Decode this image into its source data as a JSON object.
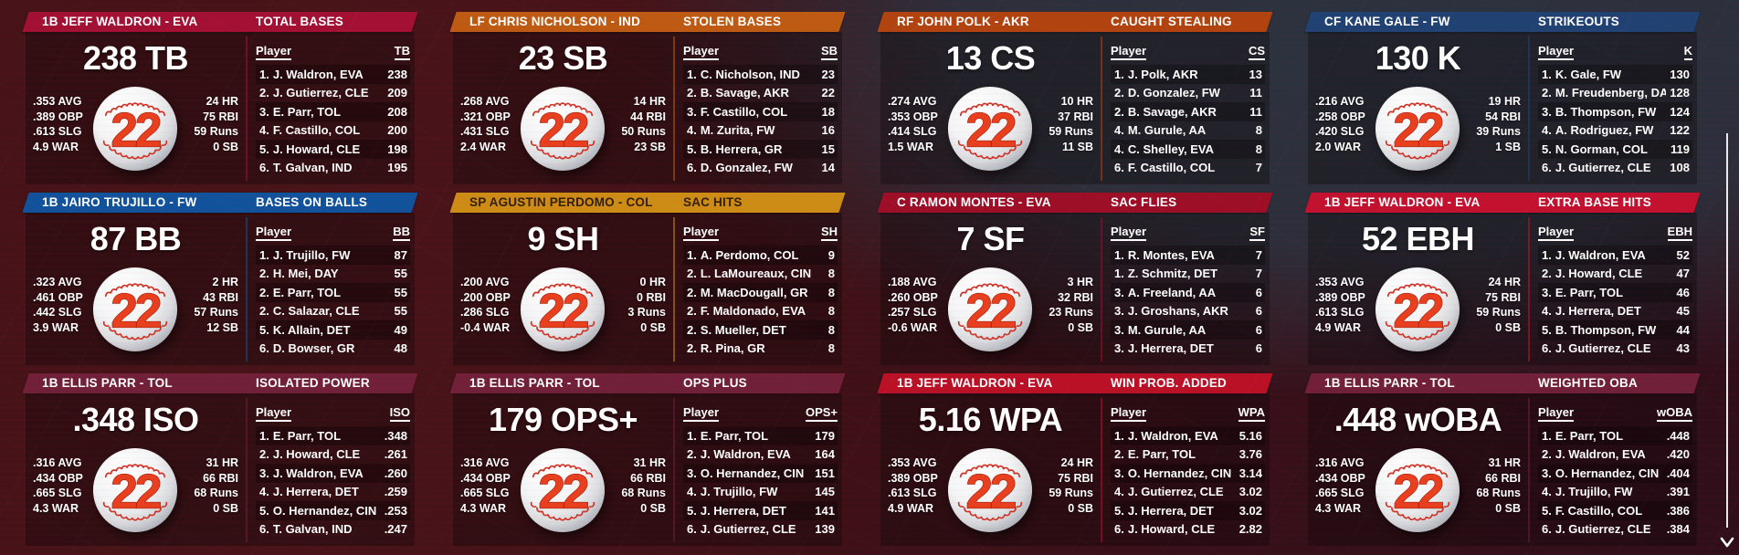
{
  "theme": {
    "page_bg_maroon": "#3e1117",
    "page_bg_slate": "#2b333f",
    "card_overlay": "rgba(13,5,9,0.34)",
    "text_color": "#ffffff",
    "ball_number_color": "#e8401f",
    "stitch_color": "#cf3326"
  },
  "scrollbar": {
    "down_arrow": "v"
  },
  "cards": [
    {
      "player": "1B JEFF WALDRON - EVA",
      "category": "TOTAL BASES",
      "big_value": "238 TB",
      "ball_number": "22",
      "header_bg": "#a21134",
      "header_text_color": "#ffffff",
      "left_stats": [
        ".353 AVG",
        ".389 OBP",
        ".613 SLG",
        "4.9 WAR"
      ],
      "right_stats": [
        "24 HR",
        "75 RBI",
        "59 Runs",
        "0 SB"
      ],
      "list": {
        "player_header": "Player",
        "stat_header": "TB",
        "rows": [
          {
            "rank": "1.",
            "name": "J. Waldron, EVA",
            "value": "238"
          },
          {
            "rank": "2.",
            "name": "J. Gutierrez, CLE",
            "value": "209"
          },
          {
            "rank": "3.",
            "name": "E. Parr, TOL",
            "value": "208"
          },
          {
            "rank": "4.",
            "name": "F. Castillo, COL",
            "value": "200"
          },
          {
            "rank": "5.",
            "name": "J. Howard, CLE",
            "value": "198"
          },
          {
            "rank": "6.",
            "name": "T. Galvan, IND",
            "value": "195"
          }
        ]
      }
    },
    {
      "player": "LF CHRIS NICHOLSON - IND",
      "category": "STOLEN BASES",
      "big_value": "23 SB",
      "ball_number": "22",
      "header_bg": "#bd5a13",
      "header_text_color": "#ffffff",
      "left_stats": [
        ".268 AVG",
        ".321 OBP",
        ".431 SLG",
        "2.4 WAR"
      ],
      "right_stats": [
        "14 HR",
        "44 RBI",
        "50 Runs",
        "23 SB"
      ],
      "list": {
        "player_header": "Player",
        "stat_header": "SB",
        "rows": [
          {
            "rank": "1.",
            "name": "C. Nicholson, IND",
            "value": "23"
          },
          {
            "rank": "2.",
            "name": "B. Savage, AKR",
            "value": "22"
          },
          {
            "rank": "3.",
            "name": "F. Castillo, COL",
            "value": "18"
          },
          {
            "rank": "4.",
            "name": "M. Zurita, FW",
            "value": "16"
          },
          {
            "rank": "5.",
            "name": "B. Herrera, GR",
            "value": "15"
          },
          {
            "rank": "6.",
            "name": "D. Gonzalez, FW",
            "value": "14"
          }
        ]
      }
    },
    {
      "player": "RF JOHN POLK - AKR",
      "category": "CAUGHT STEALING",
      "big_value": "13 CS",
      "ball_number": "22",
      "header_bg": "#b0430f",
      "header_text_color": "#ffffff",
      "left_stats": [
        ".274 AVG",
        ".353 OBP",
        ".414 SLG",
        "1.5 WAR"
      ],
      "right_stats": [
        "10 HR",
        "37 RBI",
        "59 Runs",
        "11 SB"
      ],
      "list": {
        "player_header": "Player",
        "stat_header": "CS",
        "rows": [
          {
            "rank": "1.",
            "name": "J. Polk, AKR",
            "value": "13"
          },
          {
            "rank": "2.",
            "name": "D. Gonzalez, FW",
            "value": "11"
          },
          {
            "rank": "2.",
            "name": "B. Savage, AKR",
            "value": "11"
          },
          {
            "rank": "4.",
            "name": "M. Gurule, AA",
            "value": "8"
          },
          {
            "rank": "4.",
            "name": "C. Shelley, EVA",
            "value": "8"
          },
          {
            "rank": "6.",
            "name": "F. Castillo, COL",
            "value": "7"
          }
        ]
      }
    },
    {
      "player": "CF KANE GALE - FW",
      "category": "STRIKEOUTS",
      "big_value": "130 K",
      "ball_number": "22",
      "header_bg": "#1f4273",
      "header_text_color": "#ffffff",
      "left_stats": [
        ".216 AVG",
        ".258 OBP",
        ".420 SLG",
        "2.0 WAR"
      ],
      "right_stats": [
        "19 HR",
        "54 RBI",
        "39 Runs",
        "1 SB"
      ],
      "list": {
        "player_header": "Player",
        "stat_header": "K",
        "rows": [
          {
            "rank": "1.",
            "name": "K. Gale, FW",
            "value": "130"
          },
          {
            "rank": "2.",
            "name": "M. Freudenberg, DA",
            "value": "128"
          },
          {
            "rank": "3.",
            "name": "B. Thompson, FW",
            "value": "124"
          },
          {
            "rank": "4.",
            "name": "A. Rodriguez, FW",
            "value": "122"
          },
          {
            "rank": "5.",
            "name": "N. Gorman, COL",
            "value": "119"
          },
          {
            "rank": "6.",
            "name": "J. Gutierrez, CLE",
            "value": "108"
          }
        ]
      }
    },
    {
      "player": "1B JAIRO TRUJILLO - FW",
      "category": "BASES ON BALLS",
      "big_value": "87 BB",
      "ball_number": "22",
      "header_bg": "#11529c",
      "header_text_color": "#ffffff",
      "left_stats": [
        ".323 AVG",
        ".461 OBP",
        ".442 SLG",
        "3.9 WAR"
      ],
      "right_stats": [
        "2 HR",
        "43 RBI",
        "57 Runs",
        "12 SB"
      ],
      "list": {
        "player_header": "Player",
        "stat_header": "BB",
        "rows": [
          {
            "rank": "1.",
            "name": "J. Trujillo, FW",
            "value": "87"
          },
          {
            "rank": "2.",
            "name": "H. Mei, DAY",
            "value": "55"
          },
          {
            "rank": "2.",
            "name": "E. Parr, TOL",
            "value": "55"
          },
          {
            "rank": "2.",
            "name": "C. Salazar, CLE",
            "value": "55"
          },
          {
            "rank": "5.",
            "name": "K. Allain, DET",
            "value": "49"
          },
          {
            "rank": "6.",
            "name": "D. Bowser, GR",
            "value": "48"
          }
        ]
      }
    },
    {
      "player": "SP AGUSTIN PERDOMO - COL",
      "category": "SAC HITS",
      "big_value": "9 SH",
      "ball_number": "22",
      "header_bg": "#cd8c15",
      "header_text_color": "#33200a",
      "left_stats": [
        ".200 AVG",
        ".200 OBP",
        ".286 SLG",
        "-0.4 WAR"
      ],
      "right_stats": [
        "0 HR",
        "0 RBI",
        "3 Runs",
        "0 SB"
      ],
      "list": {
        "player_header": "Player",
        "stat_header": "SH",
        "rows": [
          {
            "rank": "1.",
            "name": "A. Perdomo, COL",
            "value": "9"
          },
          {
            "rank": "2.",
            "name": "L. LaMoureaux, CIN",
            "value": "8"
          },
          {
            "rank": "2.",
            "name": "M. MacDougall, GR",
            "value": "8"
          },
          {
            "rank": "2.",
            "name": "F. Maldonado, EVA",
            "value": "8"
          },
          {
            "rank": "2.",
            "name": "S. Mueller, DET",
            "value": "8"
          },
          {
            "rank": "2.",
            "name": "R. Pina, GR",
            "value": "8"
          }
        ]
      }
    },
    {
      "player": "C RAMON MONTES - EVA",
      "category": "SAC FLIES",
      "big_value": "7 SF",
      "ball_number": "22",
      "header_bg": "#9d0e27",
      "header_text_color": "#ffffff",
      "left_stats": [
        ".188 AVG",
        ".260 OBP",
        ".257 SLG",
        "-0.6 WAR"
      ],
      "right_stats": [
        "3 HR",
        "32 RBI",
        "23 Runs",
        "0 SB"
      ],
      "list": {
        "player_header": "Player",
        "stat_header": "SF",
        "rows": [
          {
            "rank": "1.",
            "name": "R. Montes, EVA",
            "value": "7"
          },
          {
            "rank": "1.",
            "name": "Z. Schmitz, DET",
            "value": "7"
          },
          {
            "rank": "3.",
            "name": "A. Freeland, AA",
            "value": "6"
          },
          {
            "rank": "3.",
            "name": "J. Groshans, AKR",
            "value": "6"
          },
          {
            "rank": "3.",
            "name": "M. Gurule, AA",
            "value": "6"
          },
          {
            "rank": "3.",
            "name": "J. Herrera, DET",
            "value": "6"
          }
        ]
      }
    },
    {
      "player": "1B JEFF WALDRON - EVA",
      "category": "EXTRA BASE HITS",
      "big_value": "52 EBH",
      "ball_number": "22",
      "header_bg": "#c21230",
      "header_text_color": "#ffffff",
      "left_stats": [
        ".353 AVG",
        ".389 OBP",
        ".613 SLG",
        "4.9 WAR"
      ],
      "right_stats": [
        "24 HR",
        "75 RBI",
        "59 Runs",
        "0 SB"
      ],
      "list": {
        "player_header": "Player",
        "stat_header": "EBH",
        "rows": [
          {
            "rank": "1.",
            "name": "J. Waldron, EVA",
            "value": "52"
          },
          {
            "rank": "2.",
            "name": "J. Howard, CLE",
            "value": "47"
          },
          {
            "rank": "3.",
            "name": "E. Parr, TOL",
            "value": "46"
          },
          {
            "rank": "4.",
            "name": "J. Herrera, DET",
            "value": "45"
          },
          {
            "rank": "5.",
            "name": "B. Thompson, FW",
            "value": "44"
          },
          {
            "rank": "6.",
            "name": "J. Gutierrez, CLE",
            "value": "43"
          }
        ]
      }
    },
    {
      "player": "1B ELLIS PARR - TOL",
      "category": "ISOLATED POWER",
      "big_value": ".348 ISO",
      "ball_number": "22",
      "header_bg": "#702038",
      "header_text_color": "#ffffff",
      "left_stats": [
        ".316 AVG",
        ".434 OBP",
        ".665 SLG",
        "4.3 WAR"
      ],
      "right_stats": [
        "31 HR",
        "66 RBI",
        "68 Runs",
        "0 SB"
      ],
      "list": {
        "player_header": "Player",
        "stat_header": "ISO",
        "rows": [
          {
            "rank": "1.",
            "name": "E. Parr, TOL",
            "value": ".348"
          },
          {
            "rank": "2.",
            "name": "J. Howard, CLE",
            "value": ".261"
          },
          {
            "rank": "3.",
            "name": "J. Waldron, EVA",
            "value": ".260"
          },
          {
            "rank": "4.",
            "name": "J. Herrera, DET",
            "value": ".259"
          },
          {
            "rank": "5.",
            "name": "O. Hernandez, CIN",
            "value": ".253"
          },
          {
            "rank": "6.",
            "name": "T. Galvan, IND",
            "value": ".247"
          }
        ]
      }
    },
    {
      "player": "1B ELLIS PARR - TOL",
      "category": "OPS PLUS",
      "big_value": "179 OPS+",
      "ball_number": "22",
      "header_bg": "#702038",
      "header_text_color": "#ffffff",
      "left_stats": [
        ".316 AVG",
        ".434 OBP",
        ".665 SLG",
        "4.3 WAR"
      ],
      "right_stats": [
        "31 HR",
        "66 RBI",
        "68 Runs",
        "0 SB"
      ],
      "list": {
        "player_header": "Player",
        "stat_header": "OPS+",
        "rows": [
          {
            "rank": "1.",
            "name": "E. Parr, TOL",
            "value": "179"
          },
          {
            "rank": "2.",
            "name": "J. Waldron, EVA",
            "value": "164"
          },
          {
            "rank": "3.",
            "name": "O. Hernandez, CIN",
            "value": "151"
          },
          {
            "rank": "4.",
            "name": "J. Trujillo, FW",
            "value": "145"
          },
          {
            "rank": "5.",
            "name": "J. Herrera, DET",
            "value": "141"
          },
          {
            "rank": "6.",
            "name": "J. Gutierrez, CLE",
            "value": "139"
          }
        ]
      }
    },
    {
      "player": "1B JEFF WALDRON - EVA",
      "category": "WIN PROB. ADDED",
      "big_value": "5.16 WPA",
      "ball_number": "22",
      "header_bg": "#ba1126",
      "header_text_color": "#ffffff",
      "left_stats": [
        ".353 AVG",
        ".389 OBP",
        ".613 SLG",
        "4.9 WAR"
      ],
      "right_stats": [
        "24 HR",
        "75 RBI",
        "59 Runs",
        "0 SB"
      ],
      "list": {
        "player_header": "Player",
        "stat_header": "WPA",
        "rows": [
          {
            "rank": "1.",
            "name": "J. Waldron, EVA",
            "value": "5.16"
          },
          {
            "rank": "2.",
            "name": "E. Parr, TOL",
            "value": "3.76"
          },
          {
            "rank": "3.",
            "name": "O. Hernandez, CIN",
            "value": "3.14"
          },
          {
            "rank": "4.",
            "name": "J. Gutierrez, CLE",
            "value": "3.02"
          },
          {
            "rank": "5.",
            "name": "J. Herrera, DET",
            "value": "3.02"
          },
          {
            "rank": "6.",
            "name": "J. Howard, CLE",
            "value": "2.82"
          }
        ]
      }
    },
    {
      "player": "1B ELLIS PARR - TOL",
      "category": "WEIGHTED OBA",
      "big_value": ".448 wOBA",
      "ball_number": "22",
      "header_bg": "#702038",
      "header_text_color": "#ffffff",
      "left_stats": [
        ".316 AVG",
        ".434 OBP",
        ".665 SLG",
        "4.3 WAR"
      ],
      "right_stats": [
        "31 HR",
        "66 RBI",
        "68 Runs",
        "0 SB"
      ],
      "list": {
        "player_header": "Player",
        "stat_header": "wOBA",
        "rows": [
          {
            "rank": "1.",
            "name": "E. Parr, TOL",
            "value": ".448"
          },
          {
            "rank": "2.",
            "name": "J. Waldron, EVA",
            "value": ".420"
          },
          {
            "rank": "3.",
            "name": "O. Hernandez, CIN",
            "value": ".404"
          },
          {
            "rank": "4.",
            "name": "J. Trujillo, FW",
            "value": ".391"
          },
          {
            "rank": "5.",
            "name": "F. Castillo, COL",
            "value": ".386"
          },
          {
            "rank": "6.",
            "name": "J. Gutierrez, CLE",
            "value": ".384"
          }
        ]
      }
    }
  ]
}
